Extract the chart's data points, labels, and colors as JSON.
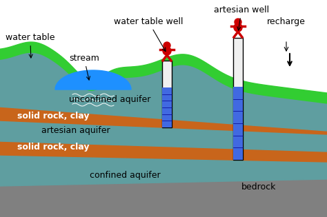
{
  "colors": {
    "sky": "#ffffff",
    "teal_aquifer": "#5f9ea0",
    "orange_clay": "#c8651b",
    "gray_bedrock": "#808080",
    "green_surface": "#32cd32",
    "blue_water": "#1e90ff",
    "well_white": "#f0f0f0",
    "well_blue": "#4169e1",
    "red_pump": "#cc0000",
    "border": "#000000"
  },
  "labels": {
    "water_table": "water table",
    "stream": "stream",
    "water_table_well": "water table well",
    "artesian_well": "artesian well",
    "recharge": "recharge",
    "unconfined_aquifer": "unconfined aquifer",
    "solid_rock_clay_1": "solid rock, clay",
    "artesian_aquifer": "artesian aquifer",
    "solid_rock_clay_2": "solid rock, clay",
    "confined_aquifer": "confined aquifer",
    "bedrock": "bedrock"
  },
  "figsize": [
    4.74,
    3.15
  ],
  "dpi": 100
}
